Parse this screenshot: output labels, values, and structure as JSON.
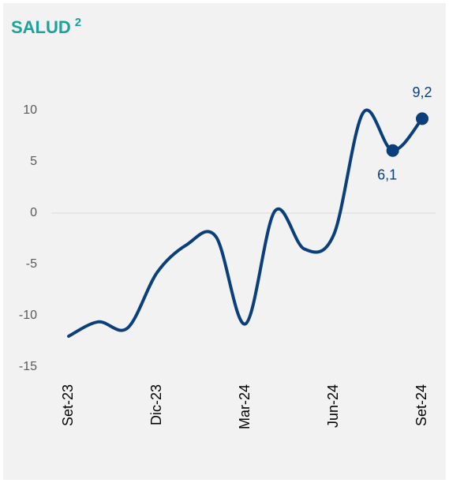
{
  "chart_data": {
    "type": "line",
    "title": "SALUD",
    "title_note": "2",
    "categories": [
      "Set-23",
      null,
      null,
      "Dic-23",
      null,
      null,
      "Mar-24",
      null,
      null,
      "Jun-24",
      null,
      null,
      "Set-24"
    ],
    "series": [
      {
        "name": "Salud",
        "color": "#0b3f7c",
        "values": [
          -12.0,
          -10.6,
          -11.2,
          -5.8,
          -3.1,
          -2.3,
          -10.8,
          0.2,
          -3.5,
          -2.1,
          9.8,
          6.1,
          9.2
        ],
        "value_labels": [
          null,
          null,
          null,
          null,
          null,
          null,
          null,
          null,
          null,
          null,
          null,
          "6,1",
          "9,2"
        ]
      }
    ],
    "ylim": [
      -15,
      12
    ],
    "yticks": [
      -15,
      -10,
      -5,
      0,
      5,
      10
    ],
    "grid": false,
    "zero_line": true
  }
}
